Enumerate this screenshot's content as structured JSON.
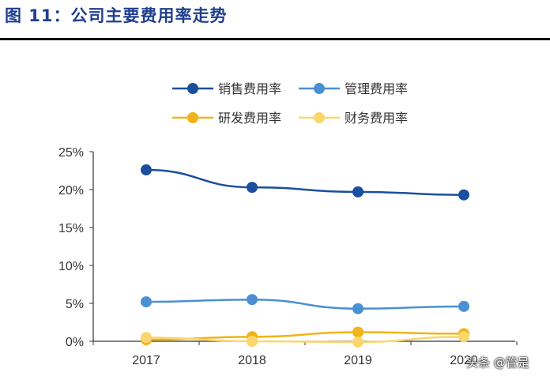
{
  "figure_title": "图 11：公司主要费用率走势",
  "watermark": "头条 @管是",
  "chart_data": {
    "type": "line",
    "categories": [
      "2017",
      "2018",
      "2019",
      "2020"
    ],
    "ylim": [
      0,
      25
    ],
    "yticks": [
      "0%",
      "5%",
      "10%",
      "15%",
      "20%",
      "25%"
    ],
    "grid": false,
    "legend_position": "top",
    "series": [
      {
        "name": "销售费用率",
        "values": [
          22.6,
          20.3,
          19.7,
          19.3
        ],
        "color": "#1a4f9e"
      },
      {
        "name": "管理费用率",
        "values": [
          5.2,
          5.5,
          4.3,
          4.6
        ],
        "color": "#4a90d2"
      },
      {
        "name": "研发费用率",
        "values": [
          0.2,
          0.6,
          1.2,
          1.0
        ],
        "color": "#f2b318"
      },
      {
        "name": "财务费用率",
        "values": [
          0.5,
          0.0,
          -0.1,
          0.6
        ],
        "color": "#fad66e"
      }
    ]
  }
}
